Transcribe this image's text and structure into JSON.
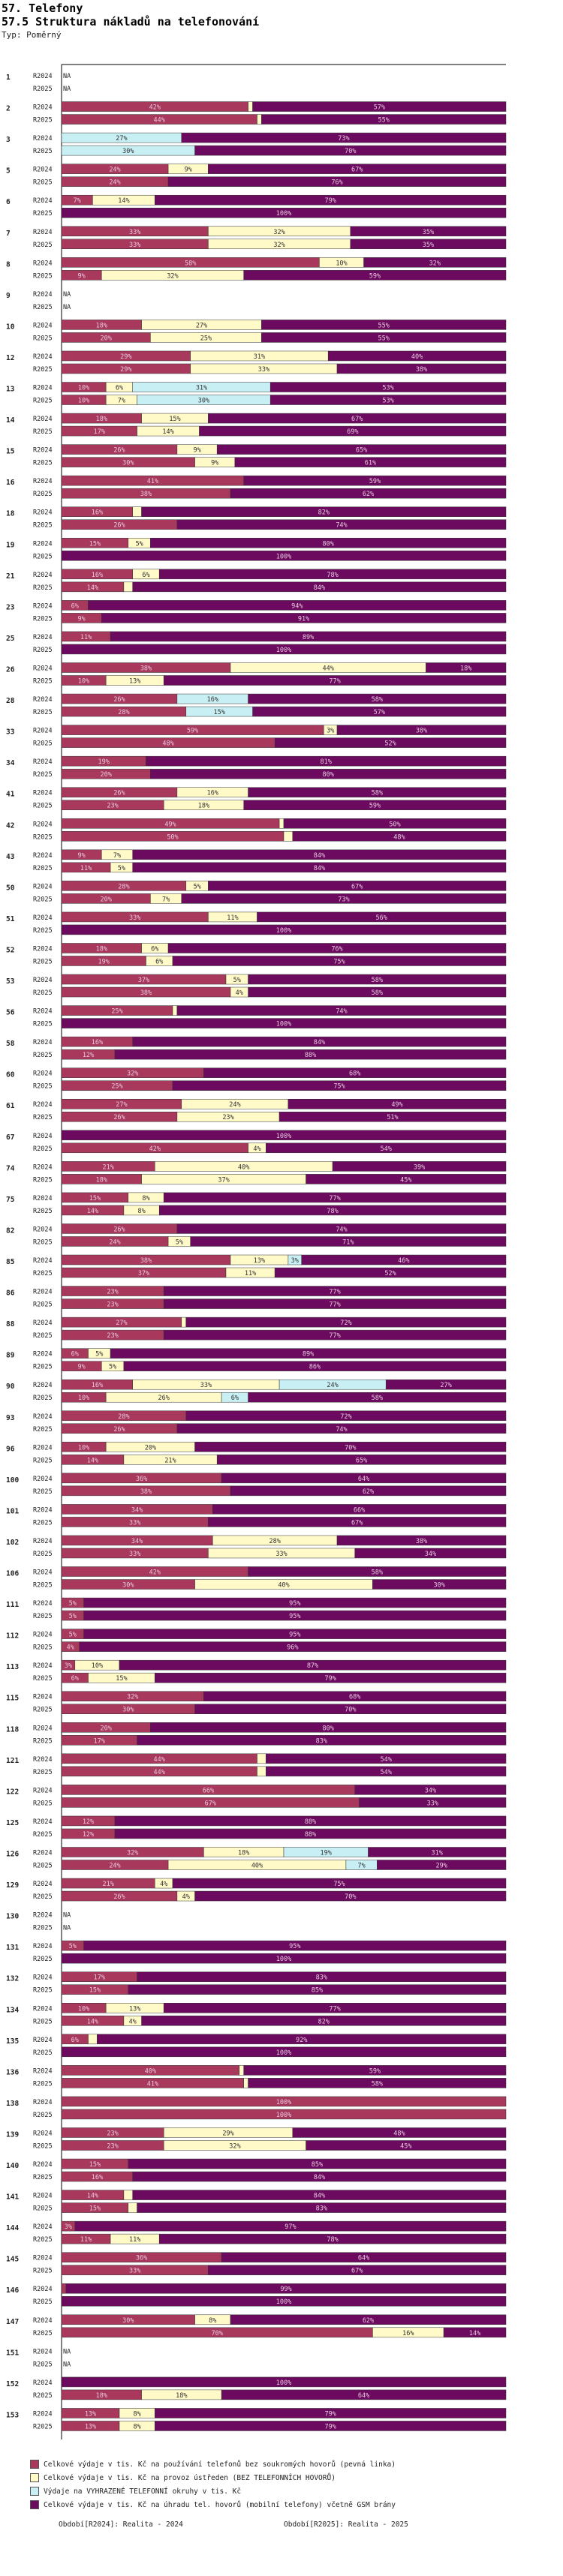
{
  "page": {
    "title1": "57. Telefony",
    "title2": "57.5 Struktura nákladů na telefonování",
    "subtitle": "Typ: Poměrný"
  },
  "colors": {
    "c1": "#a8385c",
    "c2": "#fffac8",
    "c3": "#c8f0f4",
    "c4": "#6b0a5e"
  },
  "chart_data": {
    "type": "bar",
    "orientation": "horizontal",
    "stacked": "percent",
    "xlim": [
      0,
      100
    ],
    "series_names": [
      "Celkové výdaje v tis. Kč na používání telefonů bez soukromých hovorů (pevná linka)",
      "Celkové výdaje v tis. Kč na provoz ústředen (BEZ TELEFONNÍCH HOVORŮ)",
      "Výdaje na VYHRAZENÉ TELEFONNÍ okruhy v tis. Kč",
      "Celkové výdaje v tis. Kč na úhradu tel. hovorů (mobilní telefony) včetně GSM brány"
    ],
    "year_labels": [
      "R2024",
      "R2025"
    ],
    "na_label": "NA",
    "groups": [
      {
        "id": "1",
        "rows": [
          null,
          null
        ]
      },
      {
        "id": "2",
        "rows": [
          [
            42,
            1,
            0,
            57
          ],
          [
            44,
            1,
            0,
            55
          ]
        ]
      },
      {
        "id": "3",
        "rows": [
          [
            0,
            0,
            27,
            73
          ],
          [
            0,
            0,
            30,
            70
          ]
        ]
      },
      {
        "id": "5",
        "rows": [
          [
            24,
            9,
            0,
            67
          ],
          [
            24,
            0,
            0,
            76
          ]
        ]
      },
      {
        "id": "6",
        "rows": [
          [
            7,
            14,
            0,
            79
          ],
          [
            0,
            0,
            0,
            100
          ]
        ]
      },
      {
        "id": "7",
        "rows": [
          [
            33,
            32,
            0,
            35
          ],
          [
            33,
            32,
            0,
            35
          ]
        ]
      },
      {
        "id": "8",
        "rows": [
          [
            58,
            10,
            0,
            32
          ],
          [
            9,
            32,
            0,
            59
          ]
        ]
      },
      {
        "id": "9",
        "rows": [
          null,
          null
        ]
      },
      {
        "id": "10",
        "rows": [
          [
            18,
            27,
            0,
            55
          ],
          [
            20,
            25,
            0,
            55
          ]
        ]
      },
      {
        "id": "12",
        "rows": [
          [
            29,
            31,
            0,
            40
          ],
          [
            29,
            33,
            0,
            38
          ]
        ]
      },
      {
        "id": "13",
        "rows": [
          [
            10,
            6,
            31,
            53
          ],
          [
            10,
            7,
            30,
            53
          ]
        ]
      },
      {
        "id": "14",
        "rows": [
          [
            18,
            15,
            0,
            67
          ],
          [
            17,
            14,
            0,
            69
          ]
        ]
      },
      {
        "id": "15",
        "rows": [
          [
            26,
            9,
            0,
            65
          ],
          [
            30,
            9,
            0,
            61
          ]
        ]
      },
      {
        "id": "16",
        "rows": [
          [
            41,
            0,
            0,
            59
          ],
          [
            38,
            0,
            0,
            62
          ]
        ]
      },
      {
        "id": "18",
        "rows": [
          [
            16,
            2,
            0,
            82
          ],
          [
            26,
            0,
            0,
            74
          ]
        ]
      },
      {
        "id": "19",
        "rows": [
          [
            15,
            5,
            0,
            80
          ],
          [
            0,
            0,
            0,
            100
          ]
        ]
      },
      {
        "id": "21",
        "rows": [
          [
            16,
            6,
            0,
            78
          ],
          [
            14,
            2,
            0,
            84
          ]
        ]
      },
      {
        "id": "23",
        "rows": [
          [
            6,
            0,
            0,
            94
          ],
          [
            9,
            0,
            0,
            91
          ]
        ]
      },
      {
        "id": "25",
        "rows": [
          [
            11,
            0,
            0,
            89
          ],
          [
            0,
            0,
            0,
            100
          ]
        ]
      },
      {
        "id": "26",
        "rows": [
          [
            38,
            44,
            0,
            18
          ],
          [
            10,
            13,
            0,
            77
          ]
        ]
      },
      {
        "id": "28",
        "rows": [
          [
            26,
            0,
            16,
            58
          ],
          [
            28,
            0,
            15,
            57
          ]
        ]
      },
      {
        "id": "33",
        "rows": [
          [
            59,
            3,
            0,
            38
          ],
          [
            48,
            0,
            0,
            52
          ]
        ]
      },
      {
        "id": "34",
        "rows": [
          [
            19,
            0,
            0,
            81
          ],
          [
            20,
            0,
            0,
            80
          ]
        ]
      },
      {
        "id": "41",
        "rows": [
          [
            26,
            16,
            0,
            58
          ],
          [
            23,
            18,
            0,
            59
          ]
        ]
      },
      {
        "id": "42",
        "rows": [
          [
            49,
            1,
            0,
            50
          ],
          [
            50,
            2,
            0,
            48
          ]
        ]
      },
      {
        "id": "43",
        "rows": [
          [
            9,
            7,
            0,
            84
          ],
          [
            11,
            5,
            0,
            84
          ]
        ]
      },
      {
        "id": "50",
        "rows": [
          [
            28,
            5,
            0,
            67
          ],
          [
            20,
            7,
            0,
            73
          ]
        ]
      },
      {
        "id": "51",
        "rows": [
          [
            33,
            11,
            0,
            56
          ],
          [
            0,
            0,
            0,
            100
          ]
        ]
      },
      {
        "id": "52",
        "rows": [
          [
            18,
            6,
            0,
            76
          ],
          [
            19,
            6,
            0,
            75
          ]
        ]
      },
      {
        "id": "53",
        "rows": [
          [
            37,
            5,
            0,
            58
          ],
          [
            38,
            4,
            0,
            58
          ]
        ]
      },
      {
        "id": "56",
        "rows": [
          [
            25,
            1,
            0,
            74
          ],
          [
            0,
            0,
            0,
            100
          ]
        ]
      },
      {
        "id": "58",
        "rows": [
          [
            16,
            0,
            0,
            84
          ],
          [
            12,
            0,
            0,
            88
          ]
        ]
      },
      {
        "id": "60",
        "rows": [
          [
            32,
            0,
            0,
            68
          ],
          [
            25,
            0,
            0,
            75
          ]
        ]
      },
      {
        "id": "61",
        "rows": [
          [
            27,
            24,
            0,
            49
          ],
          [
            26,
            23,
            0,
            51
          ]
        ]
      },
      {
        "id": "67",
        "rows": [
          [
            0,
            0,
            0,
            100
          ],
          [
            42,
            4,
            0,
            54
          ]
        ]
      },
      {
        "id": "74",
        "rows": [
          [
            21,
            40,
            0,
            39
          ],
          [
            18,
            37,
            0,
            45
          ]
        ]
      },
      {
        "id": "75",
        "rows": [
          [
            15,
            8,
            0,
            77
          ],
          [
            14,
            8,
            0,
            78
          ]
        ]
      },
      {
        "id": "82",
        "rows": [
          [
            26,
            0,
            0,
            74
          ],
          [
            24,
            5,
            0,
            71
          ]
        ]
      },
      {
        "id": "85",
        "rows": [
          [
            38,
            13,
            3,
            46
          ],
          [
            37,
            11,
            0,
            52
          ]
        ]
      },
      {
        "id": "86",
        "rows": [
          [
            23,
            0,
            0,
            77
          ],
          [
            23,
            0,
            0,
            77
          ]
        ]
      },
      {
        "id": "88",
        "rows": [
          [
            27,
            1,
            0,
            72
          ],
          [
            23,
            0,
            0,
            77
          ]
        ]
      },
      {
        "id": "89",
        "rows": [
          [
            6,
            5,
            0,
            89
          ],
          [
            9,
            5,
            0,
            86
          ]
        ]
      },
      {
        "id": "90",
        "rows": [
          [
            16,
            33,
            24,
            27
          ],
          [
            10,
            26,
            6,
            58
          ]
        ]
      },
      {
        "id": "93",
        "rows": [
          [
            28,
            0,
            0,
            72
          ],
          [
            26,
            0,
            0,
            74
          ]
        ]
      },
      {
        "id": "96",
        "rows": [
          [
            10,
            20,
            0,
            70
          ],
          [
            14,
            21,
            0,
            65
          ]
        ]
      },
      {
        "id": "100",
        "rows": [
          [
            36,
            0,
            0,
            64
          ],
          [
            38,
            0,
            0,
            62
          ]
        ]
      },
      {
        "id": "101",
        "rows": [
          [
            34,
            0,
            0,
            66
          ],
          [
            33,
            0,
            0,
            67
          ]
        ]
      },
      {
        "id": "102",
        "rows": [
          [
            34,
            28,
            0,
            38
          ],
          [
            33,
            33,
            0,
            34
          ]
        ]
      },
      {
        "id": "106",
        "rows": [
          [
            42,
            0,
            0,
            58
          ],
          [
            30,
            40,
            0,
            30
          ]
        ]
      },
      {
        "id": "111",
        "rows": [
          [
            5,
            0,
            0,
            95
          ],
          [
            5,
            0,
            0,
            95
          ]
        ]
      },
      {
        "id": "112",
        "rows": [
          [
            5,
            0,
            0,
            95
          ],
          [
            4,
            0,
            0,
            96
          ]
        ]
      },
      {
        "id": "113",
        "rows": [
          [
            3,
            10,
            0,
            87
          ],
          [
            6,
            15,
            0,
            79
          ]
        ]
      },
      {
        "id": "115",
        "rows": [
          [
            32,
            0,
            0,
            68
          ],
          [
            30,
            0,
            0,
            70
          ]
        ]
      },
      {
        "id": "118",
        "rows": [
          [
            20,
            0,
            0,
            80
          ],
          [
            17,
            0,
            0,
            83
          ]
        ]
      },
      {
        "id": "121",
        "rows": [
          [
            44,
            2,
            0,
            54
          ],
          [
            44,
            2,
            0,
            54
          ]
        ]
      },
      {
        "id": "122",
        "rows": [
          [
            66,
            0,
            0,
            34
          ],
          [
            67,
            0,
            0,
            33
          ]
        ]
      },
      {
        "id": "125",
        "rows": [
          [
            12,
            0,
            0,
            88
          ],
          [
            12,
            0,
            0,
            88
          ]
        ]
      },
      {
        "id": "126",
        "rows": [
          [
            32,
            18,
            19,
            31
          ],
          [
            24,
            40,
            7,
            29
          ]
        ]
      },
      {
        "id": "129",
        "rows": [
          [
            21,
            4,
            0,
            75
          ],
          [
            26,
            4,
            0,
            70
          ]
        ]
      },
      {
        "id": "130",
        "rows": [
          null,
          null
        ]
      },
      {
        "id": "131",
        "rows": [
          [
            5,
            0,
            0,
            95
          ],
          [
            0,
            0,
            0,
            100
          ]
        ]
      },
      {
        "id": "132",
        "rows": [
          [
            17,
            0,
            0,
            83
          ],
          [
            15,
            0,
            0,
            85
          ]
        ]
      },
      {
        "id": "134",
        "rows": [
          [
            10,
            13,
            0,
            77
          ],
          [
            14,
            4,
            0,
            82
          ]
        ]
      },
      {
        "id": "135",
        "rows": [
          [
            6,
            2,
            0,
            92
          ],
          [
            0,
            0,
            0,
            100
          ]
        ]
      },
      {
        "id": "136",
        "rows": [
          [
            40,
            1,
            0,
            59
          ],
          [
            41,
            1,
            0,
            58
          ]
        ]
      },
      {
        "id": "138",
        "rows": [
          [
            100,
            0,
            0,
            0
          ],
          [
            100,
            0,
            0,
            0
          ]
        ]
      },
      {
        "id": "139",
        "rows": [
          [
            23,
            29,
            0,
            48
          ],
          [
            23,
            32,
            0,
            45
          ]
        ]
      },
      {
        "id": "140",
        "rows": [
          [
            15,
            0,
            0,
            85
          ],
          [
            16,
            0,
            0,
            84
          ]
        ]
      },
      {
        "id": "141",
        "rows": [
          [
            14,
            2,
            0,
            84
          ],
          [
            15,
            2,
            0,
            83
          ]
        ]
      },
      {
        "id": "144",
        "rows": [
          [
            3,
            0,
            0,
            97
          ],
          [
            11,
            11,
            0,
            78
          ]
        ]
      },
      {
        "id": "145",
        "rows": [
          [
            36,
            0,
            0,
            64
          ],
          [
            33,
            0,
            0,
            67
          ]
        ]
      },
      {
        "id": "146",
        "rows": [
          [
            1,
            0,
            0,
            99
          ],
          [
            0,
            0,
            0,
            100
          ]
        ]
      },
      {
        "id": "147",
        "rows": [
          [
            30,
            8,
            0,
            62
          ],
          [
            70,
            16,
            0,
            14
          ]
        ]
      },
      {
        "id": "151",
        "rows": [
          null,
          null
        ]
      },
      {
        "id": "152",
        "rows": [
          [
            0,
            0,
            0,
            100
          ],
          [
            18,
            18,
            0,
            64
          ]
        ]
      },
      {
        "id": "153",
        "rows": [
          [
            13,
            8,
            0,
            79
          ],
          [
            13,
            8,
            0,
            79
          ]
        ]
      }
    ]
  },
  "legend": {
    "items": [
      "Celkové výdaje v tis. Kč na používání telefonů bez soukromých hovorů (pevná linka)",
      "Celkové výdaje v tis. Kč na provoz ústředen (BEZ TELEFONNÍCH HOVORŮ)",
      "Výdaje na VYHRAZENÉ TELEFONNÍ okruhy v tis. Kč",
      "Celkové výdaje v tis. Kč na úhradu tel. hovorů (mobilní telefony) včetně GSM brány"
    ]
  },
  "footer": {
    "left": "Období[R2024]: Realita - 2024",
    "right": "Období[R2025]: Realita - 2025"
  }
}
